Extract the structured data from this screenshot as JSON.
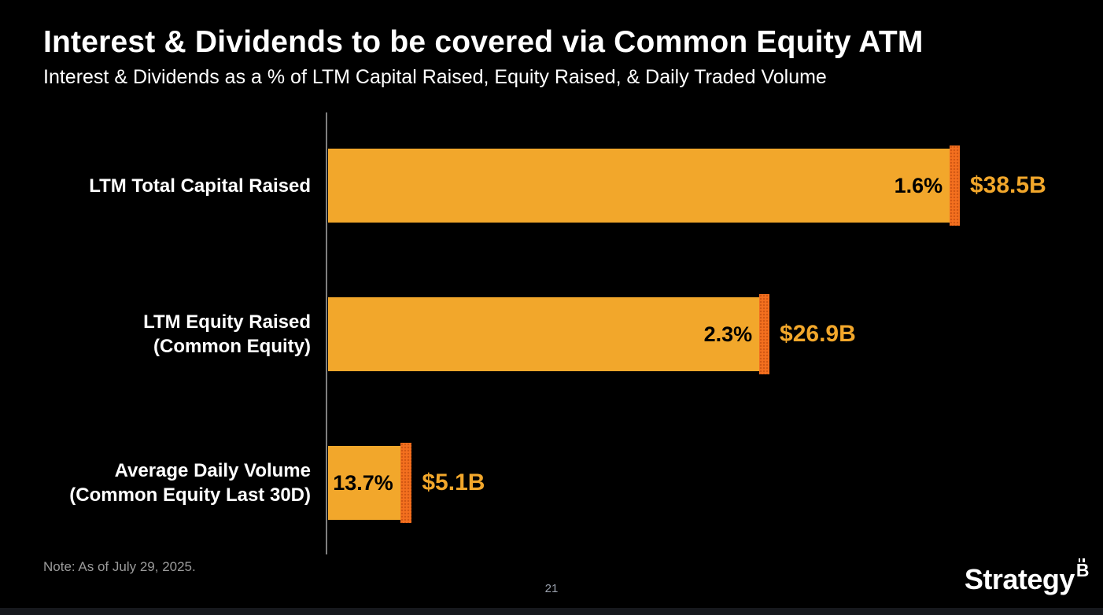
{
  "slide": {
    "title": "Interest & Dividends to be covered via Common Equity ATM",
    "subtitle": "Interest & Dividends as a % of LTM Capital Raised, Equity Raised, & Daily Traded Volume",
    "note": "Note: As of July 29, 2025.",
    "page_number": "21",
    "logo_text": "Strategy",
    "logo_mark_icon": "bitcoin-b-icon"
  },
  "colors": {
    "background": "#000000",
    "bar_fill": "#F2A72B",
    "bar_tip": "#F4701F",
    "percent_label": "#000000",
    "value_label": "#F2A72B",
    "axis_line": "#7F7F7F",
    "title_text": "#FFFFFF",
    "note_text": "#9B9B9B",
    "page_text": "#99A0AC"
  },
  "chart_data": {
    "type": "bar",
    "orientation": "horizontal",
    "title": "Interest & Dividends to be covered via Common Equity ATM",
    "subtitle": "Interest & Dividends as a % of LTM Capital Raised, Equity Raised, & Daily Traded Volume",
    "categories": [
      "LTM Total Capital Raised",
      "LTM Equity Raised (Common Equity)",
      "Average Daily Volume (Common Equity Last 30D)"
    ],
    "category_lines": [
      [
        "LTM Total Capital Raised",
        ""
      ],
      [
        "LTM Equity Raised",
        "(Common Equity)"
      ],
      [
        "Average Daily Volume",
        "(Common Equity Last 30D)"
      ]
    ],
    "values_billions": [
      38.5,
      26.9,
      5.1
    ],
    "value_labels": [
      "$38.5B",
      "$26.9B",
      "$5.1B"
    ],
    "percents": [
      1.6,
      2.3,
      13.7
    ],
    "percent_labels": [
      "1.6%",
      "2.3%",
      "13.7%"
    ],
    "xlim_billions": [
      0,
      38.5
    ],
    "grid": false,
    "legend": false,
    "tip_meaning": "Interest & Dividends share of bar (darker orange tip)"
  }
}
